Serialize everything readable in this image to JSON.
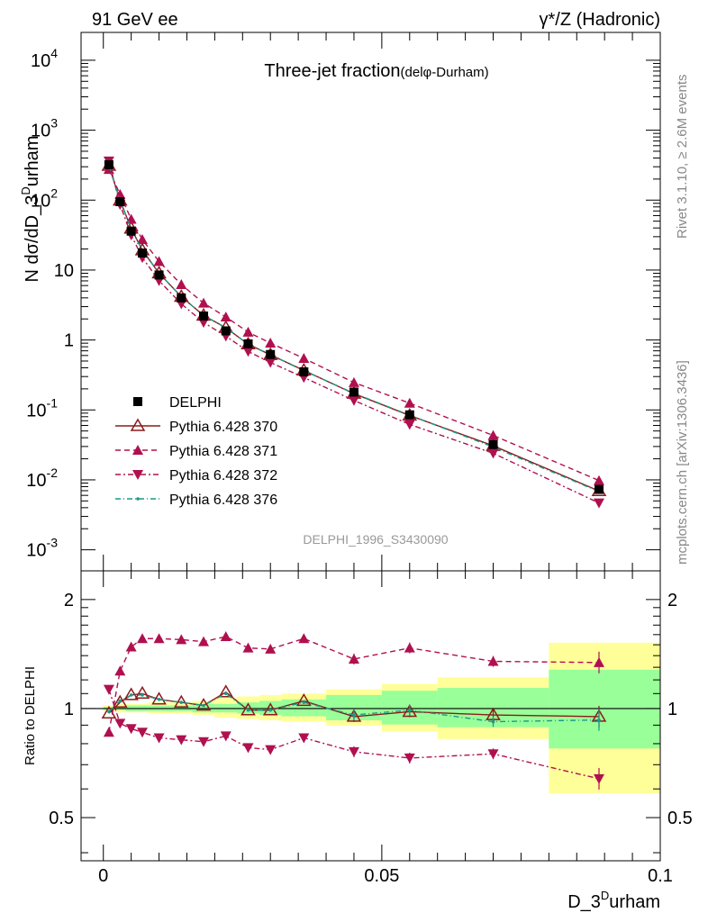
{
  "header": {
    "left": "91 GeV ee",
    "right_sym": "γ*/Z",
    "right_text": "(Hadronic)"
  },
  "side": {
    "rivet": "Rivet 3.1.10, ≥ 2.6M events",
    "mcplots": "mcplots.cern.ch [arXiv:1306.3436]"
  },
  "main": {
    "title": "Three-jet fraction",
    "subtitle_pre": "(del",
    "subtitle_sym": "φ",
    "subtitle_post": "-Durham)",
    "ylabel_pre": "N dσ/dD_3",
    "ylabel_sup": "D",
    "ylabel_post": "urham",
    "analysis": "DELPHI_1996_S3430090",
    "yticks": [
      {
        "base": "10",
        "exp": "-3",
        "v": 0.001
      },
      {
        "base": "10",
        "exp": "-2",
        "v": 0.01
      },
      {
        "base": "10",
        "exp": "-1",
        "v": 0.1
      },
      {
        "base": "1",
        "exp": "",
        "v": 1
      },
      {
        "base": "10",
        "exp": "",
        "v": 10
      },
      {
        "base": "10",
        "exp": "2",
        "v": 100
      },
      {
        "base": "10",
        "exp": "3",
        "v": 1000
      },
      {
        "base": "10",
        "exp": "4",
        "v": 10000
      }
    ]
  },
  "ratio": {
    "ylabel": "Ratio to DELPHI",
    "yticks": [
      "0.5",
      "1",
      "2"
    ],
    "xlabel_pre": "D_3",
    "xlabel_sup": "D",
    "xlabel_post": "urham",
    "xticks": [
      "0",
      "0.05",
      "0.1"
    ]
  },
  "legend": [
    {
      "label": "DELPHI"
    },
    {
      "label": "Pythia 6.428 370"
    },
    {
      "label": "Pythia 6.428 371"
    },
    {
      "label": "Pythia 6.428 372"
    },
    {
      "label": "Pythia 6.428 376"
    }
  ],
  "colors": {
    "data": "#000000",
    "p370": "#8b1a1a",
    "p371": "#b0104f",
    "p372": "#b0104f",
    "p376": "#1a9a8a",
    "band_outer": "#ffff99",
    "band_inner": "#99ff99"
  },
  "chart_data": {
    "type": "scatter",
    "x": [
      0.001,
      0.003,
      0.005,
      0.007,
      0.01,
      0.014,
      0.018,
      0.022,
      0.026,
      0.03,
      0.036,
      0.045,
      0.055,
      0.07,
      0.089
    ],
    "xlim": [
      -0.004,
      0.1
    ],
    "ylim": [
      0.0005,
      25000
    ],
    "yscale": "log",
    "data": {
      "name": "DELPHI",
      "values": [
        320,
        95,
        36,
        17.5,
        8.5,
        4.0,
        2.2,
        1.35,
        0.88,
        0.62,
        0.35,
        0.18,
        0.085,
        0.032,
        0.0073
      ]
    },
    "series": [
      {
        "name": "Pythia 6.428 370",
        "key": "p370",
        "ratio": [
          0.97,
          1.04,
          1.09,
          1.1,
          1.06,
          1.04,
          1.02,
          1.11,
          0.99,
          0.99,
          1.05,
          0.95,
          0.98,
          0.96,
          0.95
        ]
      },
      {
        "name": "Pythia 6.428 371",
        "key": "p371",
        "ratio": [
          0.86,
          1.27,
          1.48,
          1.56,
          1.56,
          1.55,
          1.53,
          1.58,
          1.47,
          1.46,
          1.56,
          1.37,
          1.47,
          1.35,
          1.34
        ]
      },
      {
        "name": "Pythia 6.428 372",
        "key": "p372",
        "ratio": [
          1.13,
          0.91,
          0.88,
          0.86,
          0.83,
          0.82,
          0.81,
          0.84,
          0.78,
          0.77,
          0.83,
          0.76,
          0.73,
          0.75,
          0.64
        ]
      },
      {
        "name": "Pythia 6.428 376",
        "key": "p376",
        "ratio": [
          0.98,
          1.05,
          1.09,
          1.09,
          1.06,
          1.04,
          1.02,
          1.1,
          0.99,
          0.99,
          1.04,
          0.96,
          0.99,
          0.92,
          0.93
        ]
      }
    ],
    "bands": {
      "edges": [
        0.0,
        0.002,
        0.004,
        0.006,
        0.008,
        0.012,
        0.016,
        0.02,
        0.024,
        0.028,
        0.032,
        0.04,
        0.05,
        0.06,
        0.08,
        0.1
      ],
      "outer": [
        0.02,
        0.03,
        0.03,
        0.03,
        0.04,
        0.04,
        0.05,
        0.07,
        0.08,
        0.09,
        0.1,
        0.13,
        0.17,
        0.22,
        0.52
      ],
      "inner": [
        0.01,
        0.01,
        0.02,
        0.02,
        0.02,
        0.02,
        0.03,
        0.03,
        0.04,
        0.05,
        0.06,
        0.09,
        0.12,
        0.14,
        0.28
      ]
    },
    "ratio_ylim": [
      0.38,
      2.4
    ],
    "ratio_yscale": "log",
    "legend_position": "lower-left",
    "grid": false
  }
}
